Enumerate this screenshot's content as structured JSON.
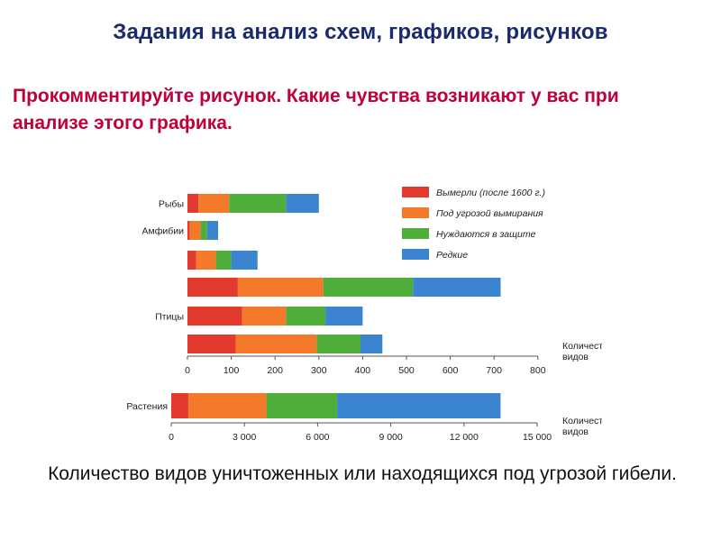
{
  "slide": {
    "title": "Задания на анализ схем, графиков, рисунков",
    "prompt": "Прокомментируйте рисунок. Какие чувства возникают у вас при анализе этого графика.",
    "caption": "Количество видов уничтоженных или находящихся под угрозой гибели."
  },
  "colors": {
    "extinct": "#e23a2e",
    "threatened": "#f5792a",
    "protection": "#4fae3a",
    "rare": "#3b84d0",
    "title": "#1a2b6d",
    "prompt": "#c0003a"
  },
  "chart_data": [
    {
      "type": "bar",
      "orientation": "horizontal",
      "stacked": true,
      "unit_label": "Количество видов",
      "xlim": [
        0,
        800
      ],
      "x_ticks": [
        "0",
        "100",
        "200",
        "300",
        "400",
        "500",
        "600",
        "700",
        "800"
      ],
      "x_tick_values": [
        0,
        100,
        200,
        300,
        400,
        500,
        600,
        700,
        800
      ],
      "legend_placement": "top-right",
      "legend": [
        "Вымерли (после 1600 г.)",
        "Под угрозой вымирания",
        "Нуждаются в защите",
        "Редкие"
      ],
      "rows": [
        {
          "label": "Рыбы",
          "values": [
            25,
            70,
            130,
            75
          ]
        },
        {
          "label": "Амфибии",
          "values": [
            5,
            25,
            15,
            25
          ]
        },
        {
          "label": "",
          "values": [
            20,
            45,
            35,
            60
          ]
        },
        {
          "label": "",
          "values": [
            115,
            195,
            205,
            200
          ]
        },
        {
          "label": "Птицы",
          "values": [
            125,
            100,
            90,
            85
          ]
        },
        {
          "label": "",
          "values": [
            110,
            185,
            100,
            50
          ]
        }
      ],
      "series": [
        {
          "name": "Вымерли (после 1600 г.)",
          "color": "#e23a2e"
        },
        {
          "name": "Под угрозой вымирания",
          "color": "#f5792a"
        },
        {
          "name": "Нуждаются в защите",
          "color": "#4fae3a"
        },
        {
          "name": "Редкие",
          "color": "#3b84d0"
        }
      ]
    },
    {
      "type": "bar",
      "orientation": "horizontal",
      "stacked": true,
      "unit_label": "Количество видов",
      "xlim": [
        0,
        15000
      ],
      "x_ticks": [
        "0",
        "3 000",
        "6 000",
        "9 000",
        "12 000",
        "15 000"
      ],
      "x_tick_values": [
        0,
        3000,
        6000,
        9000,
        12000,
        15000
      ],
      "rows": [
        {
          "label": "Растения",
          "values": [
            700,
            3200,
            2900,
            6700
          ]
        }
      ]
    }
  ]
}
